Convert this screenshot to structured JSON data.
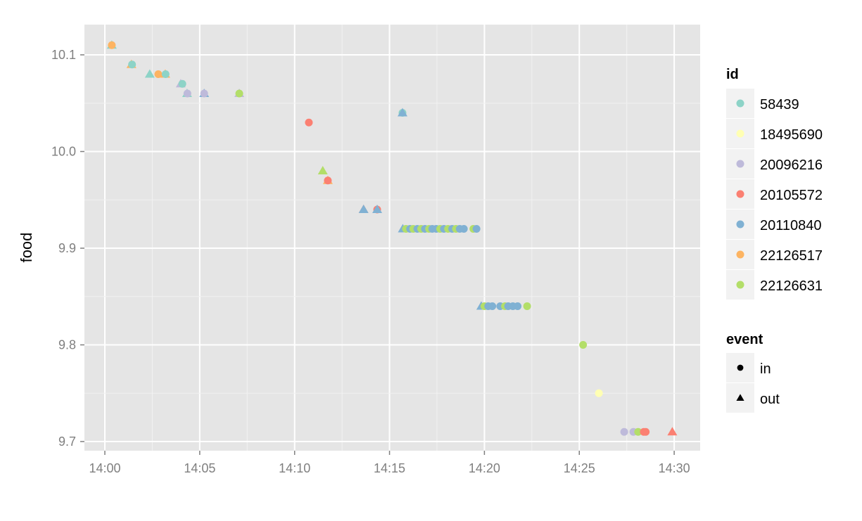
{
  "chart_data": {
    "type": "scatter",
    "xlabel": "",
    "ylabel": "food",
    "xlim": [
      "13:59:00",
      "14:31:15"
    ],
    "ylim": [
      9.69,
      10.13
    ],
    "x_ticks": [
      "14:00",
      "14:05",
      "14:10",
      "14:15",
      "14:20",
      "14:25",
      "14:30"
    ],
    "y_ticks": [
      "9.7",
      "9.8",
      "9.9",
      "10.0",
      "10.1"
    ],
    "grid": true,
    "legend_placement": "right",
    "legend_id": {
      "title": "id",
      "entries": [
        "58439",
        "18495690",
        "20096216",
        "20105572",
        "20110840",
        "22126517",
        "22126631"
      ]
    },
    "legend_event": {
      "title": "event",
      "entries": [
        "in",
        "out"
      ]
    },
    "colors": {
      "58439": "#8DD3C7",
      "18495690": "#FFFFB3",
      "20096216": "#BEBADA",
      "20105572": "#FB8072",
      "20110840": "#80B1D3",
      "22126517": "#FDB462",
      "22126631": "#B3DE69"
    },
    "points": [
      [
        "14:00:22",
        10.11,
        "58439",
        "out"
      ],
      [
        "14:00:22",
        10.11,
        "22126517",
        "in"
      ],
      [
        "14:01:24",
        10.09,
        "22126517",
        "out"
      ],
      [
        "14:01:26",
        10.09,
        "58439",
        "in"
      ],
      [
        "14:02:22",
        10.08,
        "58439",
        "out"
      ],
      [
        "14:02:49",
        10.08,
        "22126517",
        "in"
      ],
      [
        "14:03:11",
        10.08,
        "22126517",
        "out"
      ],
      [
        "14:03:12",
        10.08,
        "58439",
        "in"
      ],
      [
        "14:04:00",
        10.07,
        "20096216",
        "out"
      ],
      [
        "14:04:05",
        10.07,
        "58439",
        "in"
      ],
      [
        "14:04:20",
        10.06,
        "58439",
        "out"
      ],
      [
        "14:04:21",
        10.06,
        "20096216",
        "in"
      ],
      [
        "14:05:14",
        10.06,
        "20110840",
        "out"
      ],
      [
        "14:05:14",
        10.06,
        "20096216",
        "in"
      ],
      [
        "14:07:05",
        10.06,
        "20096216",
        "out"
      ],
      [
        "14:07:05",
        10.06,
        "22126631",
        "in"
      ],
      [
        "14:10:45",
        10.03,
        "20105572",
        "in"
      ],
      [
        "14:11:29",
        9.98,
        "22126631",
        "out"
      ],
      [
        "14:11:45",
        9.97,
        "22126517",
        "out"
      ],
      [
        "14:11:45",
        9.97,
        "20105572",
        "in"
      ],
      [
        "14:13:38",
        9.94,
        "20105572",
        "out"
      ],
      [
        "14:13:38",
        9.94,
        "20110840",
        "out"
      ],
      [
        "14:14:21",
        9.94,
        "20105572",
        "in"
      ],
      [
        "14:14:21",
        9.94,
        "20110840",
        "out"
      ],
      [
        "14:15:41",
        10.04,
        "58439",
        "in"
      ],
      [
        "14:15:41",
        10.04,
        "20110840",
        "out"
      ],
      [
        "14:15:42",
        9.92,
        "20110840",
        "out"
      ],
      [
        "14:15:52",
        9.92,
        "22126631",
        "in"
      ],
      [
        "14:16:05",
        9.92,
        "20110840",
        "in"
      ],
      [
        "14:16:15",
        9.92,
        "22126631",
        "in"
      ],
      [
        "14:16:28",
        9.92,
        "20110840",
        "in"
      ],
      [
        "14:16:40",
        9.92,
        "22126631",
        "in"
      ],
      [
        "14:16:52",
        9.92,
        "20110840",
        "in"
      ],
      [
        "14:17:05",
        9.92,
        "22126631",
        "in"
      ],
      [
        "14:17:15",
        9.92,
        "20110840",
        "in"
      ],
      [
        "14:17:28",
        9.92,
        "20110840",
        "in"
      ],
      [
        "14:17:40",
        9.92,
        "22126631",
        "in"
      ],
      [
        "14:17:52",
        9.92,
        "20110840",
        "in"
      ],
      [
        "14:18:05",
        9.92,
        "22126631",
        "in"
      ],
      [
        "14:18:18",
        9.92,
        "20110840",
        "in"
      ],
      [
        "14:18:30",
        9.92,
        "22126631",
        "in"
      ],
      [
        "14:18:42",
        9.92,
        "20110840",
        "in"
      ],
      [
        "14:18:55",
        9.92,
        "20110840",
        "in"
      ],
      [
        "14:19:25",
        9.92,
        "22126631",
        "in"
      ],
      [
        "14:19:35",
        9.92,
        "20110840",
        "in"
      ],
      [
        "14:19:50",
        9.84,
        "20110840",
        "out"
      ],
      [
        "14:20:00",
        9.84,
        "22126631",
        "in"
      ],
      [
        "14:20:12",
        9.84,
        "20110840",
        "in"
      ],
      [
        "14:20:25",
        9.84,
        "20110840",
        "in"
      ],
      [
        "14:20:50",
        9.84,
        "20110840",
        "in"
      ],
      [
        "14:21:05",
        9.84,
        "22126631",
        "in"
      ],
      [
        "14:21:15",
        9.84,
        "20110840",
        "in"
      ],
      [
        "14:21:30",
        9.84,
        "20110840",
        "in"
      ],
      [
        "14:21:45",
        9.84,
        "20110840",
        "in"
      ],
      [
        "14:22:15",
        9.84,
        "22126631",
        "in"
      ],
      [
        "14:25:12",
        9.8,
        "22126631",
        "in"
      ],
      [
        "14:26:02",
        9.75,
        "18495690",
        "in"
      ],
      [
        "14:27:22",
        9.71,
        "20096216",
        "in"
      ],
      [
        "14:27:51",
        9.71,
        "20096216",
        "in"
      ],
      [
        "14:28:06",
        9.71,
        "22126631",
        "in"
      ],
      [
        "14:28:24",
        9.71,
        "20105572",
        "in"
      ],
      [
        "14:28:30",
        9.71,
        "20105572",
        "in"
      ],
      [
        "14:29:54",
        9.71,
        "20105572",
        "out"
      ]
    ]
  }
}
